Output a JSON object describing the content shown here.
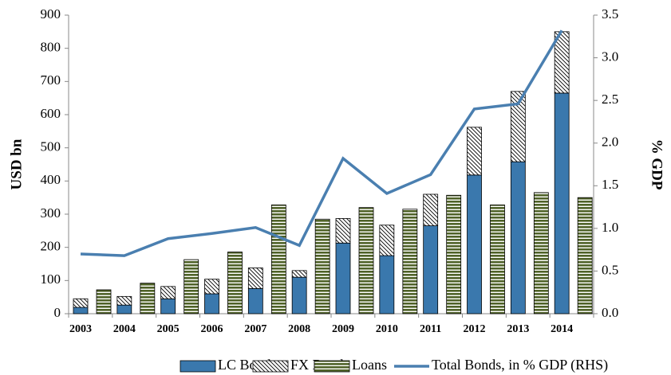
{
  "chart_data": {
    "type": "bar",
    "y_label": "USD bn",
    "y2_label": "% GDP",
    "categories": [
      "2003",
      "2004",
      "2005",
      "2006",
      "2007",
      "2008",
      "2009",
      "2010",
      "2011",
      "2012",
      "2013",
      "2014"
    ],
    "series": [
      {
        "name": "LC Bond",
        "color": "#3a78ad",
        "stack": "bonds",
        "values": [
          19,
          26,
          45,
          60,
          76,
          110,
          213,
          175,
          265,
          418,
          458,
          665
        ]
      },
      {
        "name": "FX Bond",
        "color": "#000000",
        "stack": "bonds",
        "values": [
          26,
          26,
          37,
          44,
          62,
          20,
          74,
          92,
          95,
          144,
          212,
          185
        ]
      },
      {
        "name": "Loans",
        "color": "#4f6228",
        "stack": "loans",
        "values": [
          72,
          92,
          163,
          186,
          328,
          285,
          320,
          315,
          357,
          328,
          365,
          350
        ]
      },
      {
        "name": "Total Bonds, in % GDP (RHS)",
        "color": "#4a7fb0",
        "axis": "y2",
        "type": "line",
        "values": [
          0.7,
          0.68,
          0.88,
          0.94,
          1.01,
          0.8,
          1.82,
          1.41,
          1.63,
          2.4,
          2.46,
          3.32
        ]
      }
    ],
    "ylim": [
      0,
      900
    ],
    "yticks": [
      0,
      100,
      200,
      300,
      400,
      500,
      600,
      700,
      800,
      900
    ],
    "y2lim": [
      0,
      3.5
    ],
    "y2ticks": [
      {
        "value": 0,
        "label": "0.0"
      },
      0.5,
      {
        "value": 1,
        "label": "1.0"
      },
      1.5,
      {
        "value": 2,
        "label": "2.0"
      },
      2.5,
      {
        "value": 3,
        "label": "3.0"
      },
      3.5
    ],
    "grid": false,
    "legend": "bottom"
  }
}
